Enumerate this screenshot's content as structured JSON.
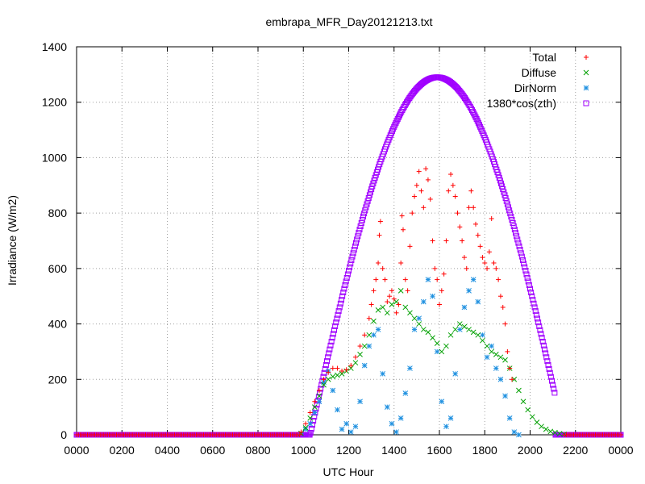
{
  "chart_data": {
    "type": "scatter",
    "title": "embrapa_MFR_Day20121213.txt",
    "xlabel": "UTC Hour",
    "ylabel": "Irradiance (W/m2)",
    "xlim": [
      0,
      24
    ],
    "ylim": [
      0,
      1400
    ],
    "x_ticks": [
      "0000",
      "0200",
      "0400",
      "0600",
      "0800",
      "1000",
      "1200",
      "1400",
      "1600",
      "1800",
      "2000",
      "2200",
      "0000"
    ],
    "y_ticks": [
      "0",
      "200",
      "400",
      "600",
      "800",
      "1000",
      "1200",
      "1400"
    ],
    "grid": true,
    "legend_position": "top-right",
    "series": [
      {
        "name": "Total",
        "marker": "plus",
        "color": "#ff0000",
        "points": [
          [
            9.9,
            10
          ],
          [
            10.1,
            40
          ],
          [
            10.3,
            80
          ],
          [
            10.5,
            120
          ],
          [
            10.7,
            160
          ],
          [
            10.9,
            200
          ],
          [
            11.1,
            225
          ],
          [
            11.3,
            240
          ],
          [
            11.5,
            240
          ],
          [
            11.7,
            230
          ],
          [
            11.9,
            235
          ],
          [
            12.1,
            250
          ],
          [
            12.3,
            280
          ],
          [
            12.5,
            320
          ],
          [
            12.7,
            360
          ],
          [
            12.9,
            420
          ],
          [
            13.0,
            470
          ],
          [
            13.1,
            520
          ],
          [
            13.2,
            560
          ],
          [
            13.3,
            620
          ],
          [
            13.35,
            720
          ],
          [
            13.4,
            770
          ],
          [
            13.5,
            600
          ],
          [
            13.6,
            560
          ],
          [
            13.7,
            480
          ],
          [
            13.8,
            500
          ],
          [
            13.9,
            520
          ],
          [
            14.0,
            490
          ],
          [
            14.1,
            440
          ],
          [
            14.2,
            470
          ],
          [
            14.3,
            620
          ],
          [
            14.35,
            790
          ],
          [
            14.4,
            740
          ],
          [
            14.5,
            560
          ],
          [
            14.6,
            520
          ],
          [
            14.7,
            680
          ],
          [
            14.8,
            800
          ],
          [
            14.9,
            860
          ],
          [
            15.0,
            900
          ],
          [
            15.1,
            950
          ],
          [
            15.2,
            880
          ],
          [
            15.3,
            820
          ],
          [
            15.4,
            960
          ],
          [
            15.5,
            920
          ],
          [
            15.6,
            850
          ],
          [
            15.7,
            700
          ],
          [
            15.8,
            600
          ],
          [
            15.9,
            560
          ],
          [
            16.0,
            470
          ],
          [
            16.1,
            520
          ],
          [
            16.2,
            580
          ],
          [
            16.3,
            700
          ],
          [
            16.4,
            880
          ],
          [
            16.5,
            940
          ],
          [
            16.6,
            900
          ],
          [
            16.7,
            860
          ],
          [
            16.8,
            800
          ],
          [
            16.9,
            750
          ],
          [
            17.0,
            700
          ],
          [
            17.1,
            640
          ],
          [
            17.2,
            600
          ],
          [
            17.3,
            820
          ],
          [
            17.4,
            880
          ],
          [
            17.5,
            820
          ],
          [
            17.6,
            760
          ],
          [
            17.7,
            720
          ],
          [
            17.8,
            680
          ],
          [
            17.9,
            640
          ],
          [
            18.0,
            620
          ],
          [
            18.1,
            600
          ],
          [
            18.2,
            660
          ],
          [
            18.3,
            780
          ],
          [
            18.4,
            620
          ],
          [
            18.5,
            600
          ],
          [
            18.6,
            560
          ],
          [
            18.7,
            500
          ],
          [
            18.8,
            460
          ],
          [
            18.9,
            400
          ],
          [
            19.0,
            300
          ],
          [
            19.1,
            240
          ],
          [
            19.2,
            200
          ]
        ]
      },
      {
        "name": "Diffuse",
        "marker": "cross",
        "color": "#00a000",
        "points": [
          [
            9.9,
            5
          ],
          [
            10.1,
            25
          ],
          [
            10.3,
            60
          ],
          [
            10.5,
            100
          ],
          [
            10.7,
            140
          ],
          [
            10.9,
            180
          ],
          [
            11.1,
            200
          ],
          [
            11.3,
            210
          ],
          [
            11.5,
            215
          ],
          [
            11.7,
            220
          ],
          [
            11.9,
            230
          ],
          [
            12.1,
            240
          ],
          [
            12.3,
            260
          ],
          [
            12.5,
            290
          ],
          [
            12.7,
            320
          ],
          [
            12.9,
            360
          ],
          [
            13.1,
            410
          ],
          [
            13.3,
            450
          ],
          [
            13.5,
            460
          ],
          [
            13.7,
            440
          ],
          [
            13.9,
            470
          ],
          [
            14.1,
            480
          ],
          [
            14.3,
            520
          ],
          [
            14.5,
            460
          ],
          [
            14.7,
            440
          ],
          [
            14.9,
            420
          ],
          [
            15.1,
            400
          ],
          [
            15.3,
            380
          ],
          [
            15.5,
            370
          ],
          [
            15.7,
            350
          ],
          [
            15.9,
            330
          ],
          [
            16.1,
            300
          ],
          [
            16.3,
            320
          ],
          [
            16.5,
            360
          ],
          [
            16.7,
            380
          ],
          [
            16.9,
            400
          ],
          [
            17.1,
            390
          ],
          [
            17.3,
            380
          ],
          [
            17.5,
            370
          ],
          [
            17.7,
            360
          ],
          [
            17.9,
            340
          ],
          [
            18.1,
            320
          ],
          [
            18.3,
            300
          ],
          [
            18.5,
            290
          ],
          [
            18.7,
            280
          ],
          [
            18.9,
            270
          ],
          [
            19.1,
            240
          ],
          [
            19.3,
            200
          ],
          [
            19.5,
            160
          ],
          [
            19.7,
            120
          ],
          [
            19.9,
            90
          ],
          [
            20.1,
            65
          ],
          [
            20.3,
            45
          ],
          [
            20.5,
            30
          ],
          [
            20.7,
            20
          ],
          [
            20.9,
            12
          ],
          [
            21.1,
            8
          ],
          [
            21.3,
            4
          ],
          [
            21.5,
            2
          ]
        ]
      },
      {
        "name": "DirNorm",
        "marker": "star",
        "color": "#1e90e0",
        "points": [
          [
            9.9,
            5
          ],
          [
            10.1,
            20
          ],
          [
            10.3,
            40
          ],
          [
            10.5,
            80
          ],
          [
            10.7,
            120
          ],
          [
            10.9,
            190
          ],
          [
            11.1,
            230
          ],
          [
            11.3,
            160
          ],
          [
            11.5,
            90
          ],
          [
            11.7,
            20
          ],
          [
            11.9,
            40
          ],
          [
            12.1,
            10
          ],
          [
            12.3,
            30
          ],
          [
            12.5,
            120
          ],
          [
            12.7,
            250
          ],
          [
            12.9,
            320
          ],
          [
            13.1,
            360
          ],
          [
            13.3,
            380
          ],
          [
            13.5,
            220
          ],
          [
            13.7,
            100
          ],
          [
            13.9,
            40
          ],
          [
            14.1,
            10
          ],
          [
            14.3,
            60
          ],
          [
            14.5,
            150
          ],
          [
            14.7,
            240
          ],
          [
            14.9,
            380
          ],
          [
            15.1,
            420
          ],
          [
            15.3,
            480
          ],
          [
            15.5,
            560
          ],
          [
            15.7,
            500
          ],
          [
            15.9,
            300
          ],
          [
            16.1,
            120
          ],
          [
            16.3,
            30
          ],
          [
            16.5,
            60
          ],
          [
            16.7,
            220
          ],
          [
            16.9,
            380
          ],
          [
            17.1,
            460
          ],
          [
            17.3,
            520
          ],
          [
            17.5,
            560
          ],
          [
            17.7,
            480
          ],
          [
            17.9,
            360
          ],
          [
            18.1,
            280
          ],
          [
            18.3,
            320
          ],
          [
            18.5,
            240
          ],
          [
            18.7,
            200
          ],
          [
            18.9,
            140
          ],
          [
            19.1,
            60
          ],
          [
            19.3,
            10
          ],
          [
            19.5,
            0
          ]
        ]
      },
      {
        "name": "1380*cos(zth)",
        "marker": "box",
        "color": "#a000ff",
        "x_start": 9.9,
        "x_end": 21.1,
        "peak_x": 15.9,
        "peak_y": 1290
      }
    ]
  }
}
